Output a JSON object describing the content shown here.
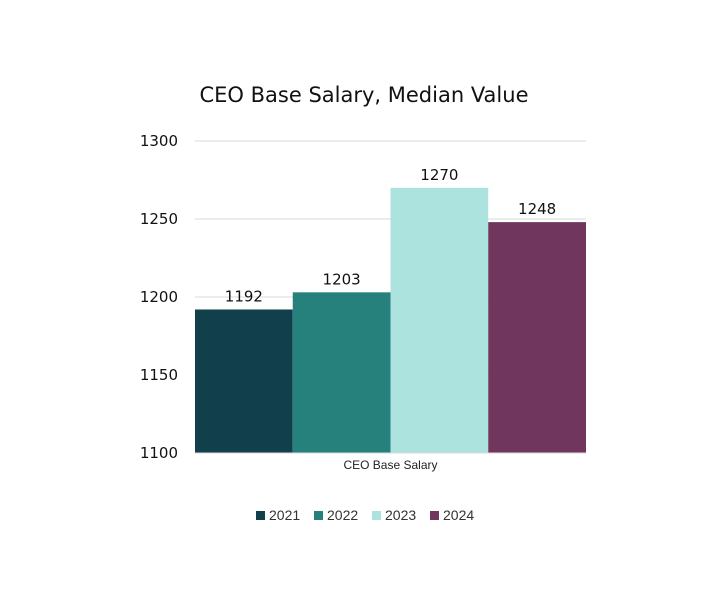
{
  "chart_data": {
    "type": "bar",
    "title": "CEO Base Salary, Median Value",
    "categories": [
      "CEO Base Salary"
    ],
    "series": [
      {
        "name": "2021",
        "values": [
          1192
        ],
        "color": "#123f4c"
      },
      {
        "name": "2022",
        "values": [
          1203
        ],
        "color": "#26807c"
      },
      {
        "name": "2023",
        "values": [
          1270
        ],
        "color": "#ace3df"
      },
      {
        "name": "2024",
        "values": [
          1248
        ],
        "color": "#70365e"
      }
    ],
    "ylim": [
      1100,
      1300
    ],
    "yticks": [
      "1100",
      "1150",
      "1200",
      "1250",
      "1300"
    ],
    "xlabel": "",
    "ylabel": "",
    "grid": true,
    "legend": "bottom",
    "data_labels": true
  }
}
